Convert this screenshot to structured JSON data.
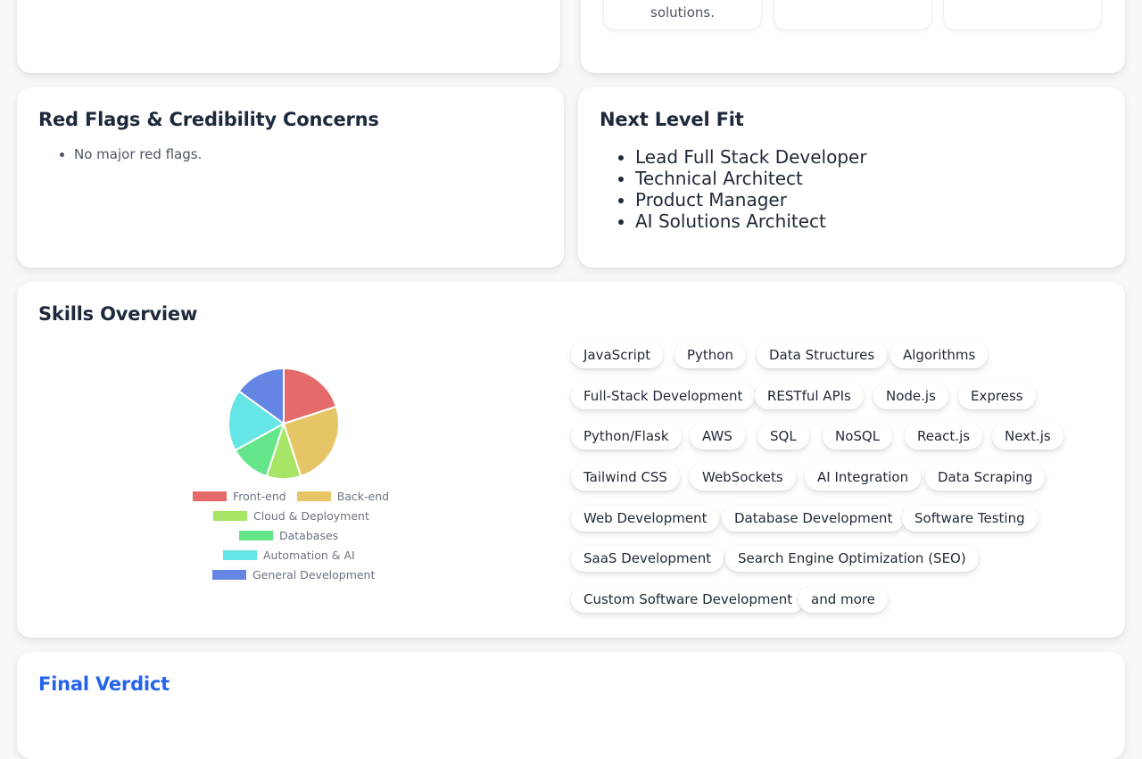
{
  "top_right_minis": [
    {
      "text": "solutions."
    },
    {
      "text": ""
    },
    {
      "text": ""
    }
  ],
  "red_flags": {
    "title": "Red Flags & Credibility Concerns",
    "items": [
      "No major red flags."
    ]
  },
  "next_level": {
    "title": "Next Level Fit",
    "items": [
      "Lead Full Stack Developer",
      "Technical Architect",
      "Product Manager",
      "AI Solutions Architect"
    ]
  },
  "skills": {
    "title": "Skills Overview",
    "tags": [
      "JavaScript",
      "Python",
      "Data Structures",
      "Algorithms",
      "Full-Stack Development",
      "RESTful APIs",
      "Node.js",
      "Express",
      "Python/Flask",
      "AWS",
      "SQL",
      "NoSQL",
      "React.js",
      "Next.js",
      "Tailwind CSS",
      "WebSockets",
      "AI Integration",
      "Data Scraping",
      "Web Development",
      "Database Development",
      "Software Testing",
      "SaaS Development",
      "Search Engine Optimization (SEO)",
      "Custom Software Development",
      "and more"
    ]
  },
  "chart_data": {
    "type": "pie",
    "legend_position": "bottom",
    "categories": [
      "Front-end",
      "Back-end",
      "Cloud & Deployment",
      "Databases",
      "Automation & AI",
      "General Development"
    ],
    "values": [
      20,
      25,
      10,
      12,
      18,
      15
    ],
    "colors": [
      "#e56a6a",
      "#e5c565",
      "#a6e565",
      "#65e58a",
      "#65e5e5",
      "#6585e5"
    ]
  },
  "final_verdict": {
    "title": "Final Verdict"
  }
}
